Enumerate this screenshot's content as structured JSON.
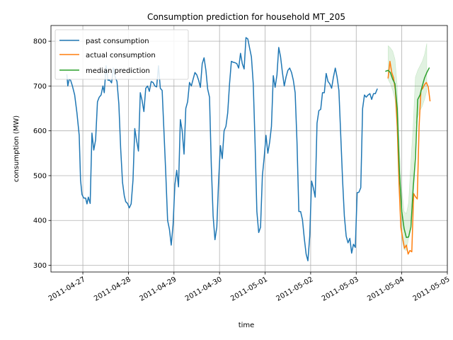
{
  "chart_data": {
    "type": "line",
    "title": "Consumption prediction for household MT_205",
    "xlabel": "time",
    "ylabel": "consumption (MW)",
    "x_unit": "days since 2011-04-27 00:00",
    "xlim": [
      -0.7,
      8.0
    ],
    "ylim": [
      285,
      835
    ],
    "grid": true,
    "legend_position": "upper-left",
    "x_ticks": [
      {
        "value": 0,
        "label": "2011-04-27"
      },
      {
        "value": 1,
        "label": "2011-04-28"
      },
      {
        "value": 2,
        "label": "2011-04-29"
      },
      {
        "value": 3,
        "label": "2011-04-30"
      },
      {
        "value": 4,
        "label": "2011-05-01"
      },
      {
        "value": 5,
        "label": "2011-05-02"
      },
      {
        "value": 6,
        "label": "2011-05-03"
      },
      {
        "value": 7,
        "label": "2011-05-04"
      },
      {
        "value": 8,
        "label": "2011-05-05"
      }
    ],
    "y_ticks": [
      {
        "value": 300,
        "label": "300"
      },
      {
        "value": 400,
        "label": "400"
      },
      {
        "value": 500,
        "label": "500"
      },
      {
        "value": 600,
        "label": "600"
      },
      {
        "value": 700,
        "label": "700"
      },
      {
        "value": 800,
        "label": "800"
      }
    ],
    "band": {
      "name": "prediction interval",
      "color": "#2ca02c",
      "points": [
        [
          6.7,
          715,
          790
        ],
        [
          6.75,
          705,
          785
        ],
        [
          6.8,
          690,
          778
        ],
        [
          6.85,
          670,
          760
        ],
        [
          6.9,
          600,
          700
        ],
        [
          6.95,
          450,
          560
        ],
        [
          7.0,
          360,
          470
        ],
        [
          7.05,
          335,
          420
        ],
        [
          7.1,
          333,
          415
        ],
        [
          7.15,
          360,
          440
        ],
        [
          7.2,
          420,
          530
        ],
        [
          7.25,
          500,
          610
        ],
        [
          7.3,
          615,
          720
        ],
        [
          7.35,
          630,
          735
        ],
        [
          7.4,
          645,
          745
        ],
        [
          7.45,
          655,
          755
        ],
        [
          7.5,
          670,
          770
        ],
        [
          7.55,
          690,
          795
        ]
      ]
    },
    "series": [
      {
        "name": "past consumption",
        "color": "#1f77b4",
        "points": [
          [
            -0.35,
            725
          ],
          [
            -0.33,
            700
          ],
          [
            -0.3,
            715
          ],
          [
            -0.27,
            713
          ],
          [
            -0.23,
            700
          ],
          [
            -0.18,
            680
          ],
          [
            -0.13,
            640
          ],
          [
            -0.08,
            590
          ],
          [
            -0.05,
            490
          ],
          [
            -0.02,
            458
          ],
          [
            0.02,
            450
          ],
          [
            0.06,
            450
          ],
          [
            0.09,
            437
          ],
          [
            0.12,
            452
          ],
          [
            0.16,
            438
          ],
          [
            0.2,
            595
          ],
          [
            0.24,
            557
          ],
          [
            0.28,
            580
          ],
          [
            0.32,
            665
          ],
          [
            0.36,
            675
          ],
          [
            0.4,
            680
          ],
          [
            0.44,
            700
          ],
          [
            0.47,
            685
          ],
          [
            0.51,
            745
          ],
          [
            0.55,
            713
          ],
          [
            0.59,
            713
          ],
          [
            0.63,
            707
          ],
          [
            0.67,
            740
          ],
          [
            0.71,
            720
          ],
          [
            0.75,
            710
          ],
          [
            0.79,
            660
          ],
          [
            0.83,
            560
          ],
          [
            0.87,
            485
          ],
          [
            0.91,
            455
          ],
          [
            0.94,
            442
          ],
          [
            0.98,
            438
          ],
          [
            1.02,
            428
          ],
          [
            1.06,
            437
          ],
          [
            1.1,
            490
          ],
          [
            1.14,
            605
          ],
          [
            1.18,
            578
          ],
          [
            1.22,
            555
          ],
          [
            1.26,
            685
          ],
          [
            1.3,
            668
          ],
          [
            1.34,
            643
          ],
          [
            1.38,
            695
          ],
          [
            1.42,
            700
          ],
          [
            1.46,
            688
          ],
          [
            1.5,
            710
          ],
          [
            1.54,
            708
          ],
          [
            1.58,
            700
          ],
          [
            1.62,
            698
          ],
          [
            1.66,
            745
          ],
          [
            1.7,
            695
          ],
          [
            1.74,
            690
          ],
          [
            1.78,
            600
          ],
          [
            1.82,
            505
          ],
          [
            1.86,
            400
          ],
          [
            1.9,
            380
          ],
          [
            1.94,
            345
          ],
          [
            1.98,
            390
          ],
          [
            2.02,
            480
          ],
          [
            2.06,
            512
          ],
          [
            2.1,
            475
          ],
          [
            2.14,
            625
          ],
          [
            2.18,
            600
          ],
          [
            2.22,
            548
          ],
          [
            2.26,
            650
          ],
          [
            2.3,
            665
          ],
          [
            2.34,
            708
          ],
          [
            2.38,
            700
          ],
          [
            2.42,
            715
          ],
          [
            2.46,
            730
          ],
          [
            2.5,
            725
          ],
          [
            2.54,
            713
          ],
          [
            2.58,
            697
          ],
          [
            2.62,
            750
          ],
          [
            2.66,
            763
          ],
          [
            2.7,
            735
          ],
          [
            2.74,
            693
          ],
          [
            2.78,
            675
          ],
          [
            2.82,
            520
          ],
          [
            2.86,
            410
          ],
          [
            2.9,
            357
          ],
          [
            2.94,
            385
          ],
          [
            2.98,
            490
          ],
          [
            3.02,
            567
          ],
          [
            3.06,
            538
          ],
          [
            3.1,
            600
          ],
          [
            3.14,
            610
          ],
          [
            3.18,
            640
          ],
          [
            3.22,
            705
          ],
          [
            3.26,
            755
          ],
          [
            3.3,
            753
          ],
          [
            3.34,
            752
          ],
          [
            3.38,
            750
          ],
          [
            3.42,
            740
          ],
          [
            3.46,
            773
          ],
          [
            3.5,
            750
          ],
          [
            3.54,
            738
          ],
          [
            3.58,
            808
          ],
          [
            3.62,
            805
          ],
          [
            3.66,
            785
          ],
          [
            3.7,
            765
          ],
          [
            3.74,
            705
          ],
          [
            3.78,
            570
          ],
          [
            3.82,
            420
          ],
          [
            3.86,
            373
          ],
          [
            3.9,
            385
          ],
          [
            3.94,
            500
          ],
          [
            3.98,
            540
          ],
          [
            4.02,
            590
          ],
          [
            4.06,
            550
          ],
          [
            4.1,
            575
          ],
          [
            4.14,
            610
          ],
          [
            4.18,
            723
          ],
          [
            4.22,
            697
          ],
          [
            4.26,
            725
          ],
          [
            4.3,
            786
          ],
          [
            4.34,
            765
          ],
          [
            4.38,
            730
          ],
          [
            4.42,
            700
          ],
          [
            4.46,
            720
          ],
          [
            4.5,
            735
          ],
          [
            4.54,
            740
          ],
          [
            4.58,
            730
          ],
          [
            4.62,
            713
          ],
          [
            4.66,
            685
          ],
          [
            4.7,
            575
          ],
          [
            4.74,
            420
          ],
          [
            4.78,
            420
          ],
          [
            4.82,
            402
          ],
          [
            4.86,
            360
          ],
          [
            4.9,
            325
          ],
          [
            4.94,
            310
          ],
          [
            4.98,
            365
          ],
          [
            5.02,
            488
          ],
          [
            5.06,
            472
          ],
          [
            5.1,
            452
          ],
          [
            5.14,
            617
          ],
          [
            5.18,
            645
          ],
          [
            5.22,
            648
          ],
          [
            5.26,
            685
          ],
          [
            5.3,
            685
          ],
          [
            5.34,
            728
          ],
          [
            5.38,
            710
          ],
          [
            5.42,
            705
          ],
          [
            5.46,
            695
          ],
          [
            5.5,
            720
          ],
          [
            5.54,
            740
          ],
          [
            5.58,
            720
          ],
          [
            5.62,
            690
          ],
          [
            5.66,
            590
          ],
          [
            5.7,
            490
          ],
          [
            5.74,
            410
          ],
          [
            5.78,
            365
          ],
          [
            5.82,
            350
          ],
          [
            5.86,
            360
          ],
          [
            5.9,
            327
          ],
          [
            5.94,
            347
          ],
          [
            5.98,
            340
          ],
          [
            6.02,
            462
          ],
          [
            6.06,
            463
          ],
          [
            6.1,
            473
          ],
          [
            6.14,
            650
          ],
          [
            6.18,
            680
          ],
          [
            6.22,
            675
          ],
          [
            6.26,
            680
          ],
          [
            6.3,
            683
          ],
          [
            6.34,
            670
          ],
          [
            6.38,
            683
          ],
          [
            6.42,
            683
          ],
          [
            6.46,
            693
          ]
        ]
      },
      {
        "name": "actual consumption",
        "color": "#ff7f0e",
        "points": [
          [
            6.7,
            718
          ],
          [
            6.74,
            755
          ],
          [
            6.78,
            730
          ],
          [
            6.82,
            718
          ],
          [
            6.86,
            690
          ],
          [
            6.9,
            610
          ],
          [
            6.94,
            480
          ],
          [
            6.98,
            385
          ],
          [
            7.02,
            360
          ],
          [
            7.06,
            338
          ],
          [
            7.1,
            345
          ],
          [
            7.14,
            325
          ],
          [
            7.18,
            333
          ],
          [
            7.22,
            330
          ],
          [
            7.26,
            460
          ],
          [
            7.3,
            453
          ],
          [
            7.34,
            448
          ],
          [
            7.38,
            610
          ],
          [
            7.42,
            690
          ],
          [
            7.46,
            695
          ],
          [
            7.5,
            703
          ],
          [
            7.54,
            708
          ],
          [
            7.58,
            698
          ],
          [
            7.62,
            667
          ]
        ]
      },
      {
        "name": "median prediction",
        "color": "#2ca02c",
        "points": [
          [
            6.65,
            733
          ],
          [
            6.7,
            735
          ],
          [
            6.75,
            730
          ],
          [
            6.8,
            715
          ],
          [
            6.85,
            705
          ],
          [
            6.9,
            650
          ],
          [
            6.95,
            505
          ],
          [
            7.0,
            420
          ],
          [
            7.05,
            382
          ],
          [
            7.1,
            362
          ],
          [
            7.15,
            363
          ],
          [
            7.2,
            385
          ],
          [
            7.25,
            470
          ],
          [
            7.3,
            540
          ],
          [
            7.35,
            670
          ],
          [
            7.4,
            680
          ],
          [
            7.45,
            700
          ],
          [
            7.5,
            718
          ],
          [
            7.55,
            730
          ],
          [
            7.6,
            740
          ]
        ]
      }
    ]
  }
}
